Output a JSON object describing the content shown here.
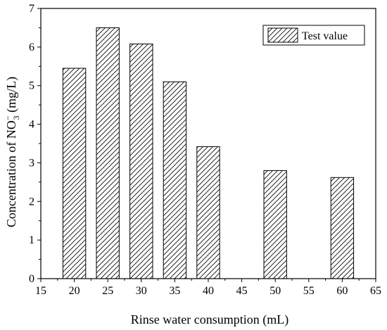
{
  "chart_data": {
    "type": "bar",
    "x": [
      20,
      25,
      30,
      35,
      40,
      50,
      60
    ],
    "values": [
      5.45,
      6.5,
      6.08,
      5.1,
      3.42,
      2.8,
      2.62
    ],
    "bar_width": 3.4,
    "series": [
      {
        "name": "Test value",
        "values": [
          5.45,
          6.5,
          6.08,
          5.1,
          3.42,
          2.8,
          2.62
        ]
      }
    ],
    "xlabel": "Rinse water consumption (mL)",
    "ylabel_parts": {
      "main": "Concentration of NO",
      "sup": "−",
      "sub": "3",
      "unit": " (mg/L)"
    },
    "xlim": [
      15,
      65
    ],
    "ylim": [
      0,
      7
    ],
    "xticks": [
      "15",
      "20",
      "25",
      "30",
      "35",
      "40",
      "45",
      "50",
      "55",
      "60",
      "65"
    ],
    "yticks": [
      "0",
      "1",
      "2",
      "3",
      "4",
      "5",
      "6",
      "7"
    ],
    "legend_position": "top-right",
    "grid": false,
    "pattern": "diagonal-hatch",
    "colors": {
      "bar_fill": "#ffffff",
      "hatch": "#000000",
      "axis": "#000000"
    }
  }
}
